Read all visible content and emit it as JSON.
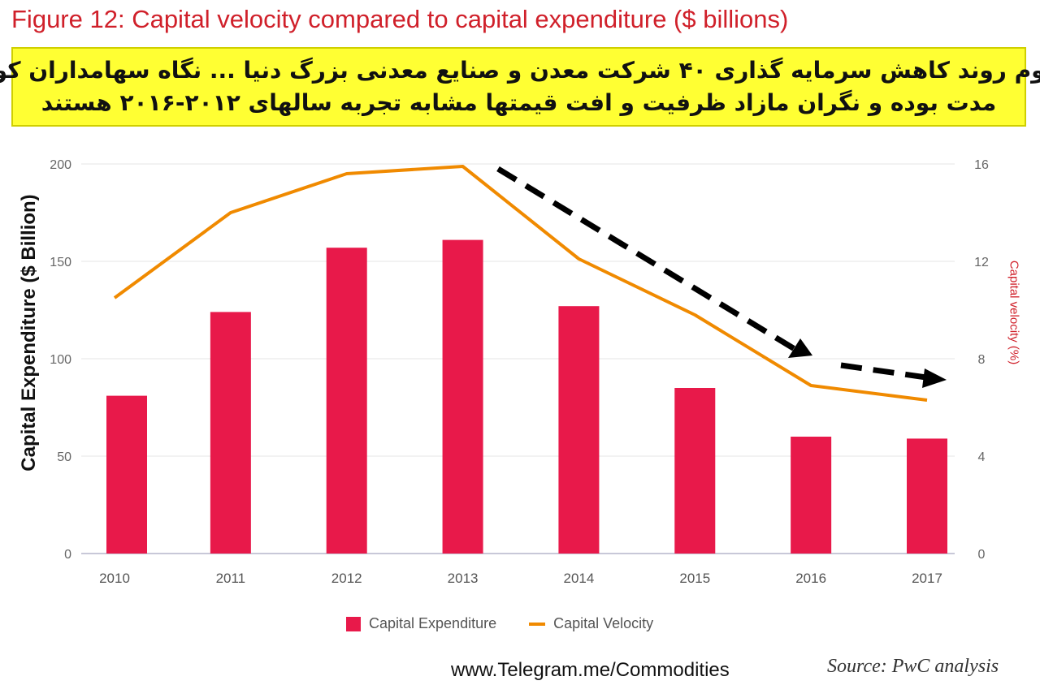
{
  "figure_title": "Figure 12: Capital velocity compared to capital expenditure ($ billions)",
  "banner": {
    "line1": "تداوم روند کاهش سرمایه گذاری ۴۰ شرکت معدن و صنایع معدنی بزرگ دنیا ... نگاه سهامداران کوتاه",
    "line2": "مدت بوده و نگران مازاد ظرفیت و افت قیمتها مشابه تجربه سالهای ۲۰۱۲-۲۰۱۶ هستند"
  },
  "chart_data": {
    "type": "bar",
    "title": "",
    "categories": [
      "2010",
      "2011",
      "2012",
      "2013",
      "2014",
      "2015",
      "2016",
      "2017"
    ],
    "series": [
      {
        "name": "Capital Expenditure",
        "type": "bar",
        "axis": "left",
        "color": "#e8194a",
        "values": [
          81,
          124,
          157,
          161,
          127,
          85,
          60,
          59
        ]
      },
      {
        "name": "Capital Velocity",
        "type": "line",
        "axis": "right",
        "color": "#f08a00",
        "values": [
          10.5,
          14,
          15.6,
          15.9,
          12.1,
          9.8,
          6.9,
          6.3
        ]
      }
    ],
    "ylabel": "Capital Expenditure ($ Billion)",
    "ylabel_right": "Capital velocity (%)",
    "ylim": [
      0,
      200
    ],
    "ylim_right": [
      0,
      16
    ],
    "yticks": [
      "0",
      "50",
      "100",
      "150",
      "200"
    ],
    "yticks_right": [
      "0",
      "4",
      "8",
      "12",
      "16"
    ],
    "grid": true,
    "legend": "bottom",
    "annotations": [
      "dashed downward trend arrow from 2013 toward 2016",
      "dashed arrow from 2016 toward 2017"
    ]
  },
  "footer": {
    "url": "www.Telegram.me/Commodities",
    "source": "Source: PwC analysis"
  },
  "colors": {
    "title": "#d0202a",
    "banner": "#ffff33",
    "bar": "#e8194a",
    "line": "#f08a00",
    "arrow": "#000000"
  }
}
